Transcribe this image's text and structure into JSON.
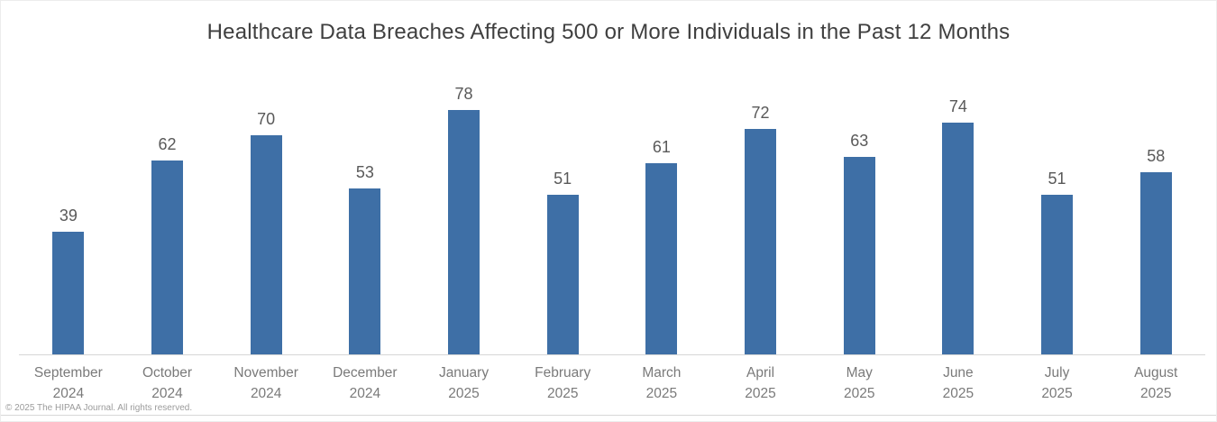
{
  "chart_data": {
    "type": "bar",
    "title": "Healthcare Data Breaches Affecting 500 or More Individuals in the Past 12 Months",
    "categories": [
      "September 2024",
      "October 2024",
      "November 2024",
      "December 2024",
      "January 2025",
      "February 2025",
      "March 2025",
      "April 2025",
      "May 2025",
      "June 2025",
      "July 2025",
      "August 2025"
    ],
    "values": [
      39,
      62,
      70,
      53,
      78,
      51,
      61,
      72,
      63,
      74,
      51,
      58
    ],
    "xlabel": "",
    "ylabel": "",
    "ylim": [
      0,
      80
    ],
    "grid": false,
    "legend": false,
    "data_labels": true,
    "bar_color": "#3E6FA6",
    "value_label_color": "#595959",
    "axis_label_color": "#7a7a7a",
    "title_color": "#3f3f3f",
    "axis_line_color": "#d6d6d6"
  },
  "footer": {
    "copyright": "© 2025 The HIPAA Journal. All rights reserved."
  }
}
